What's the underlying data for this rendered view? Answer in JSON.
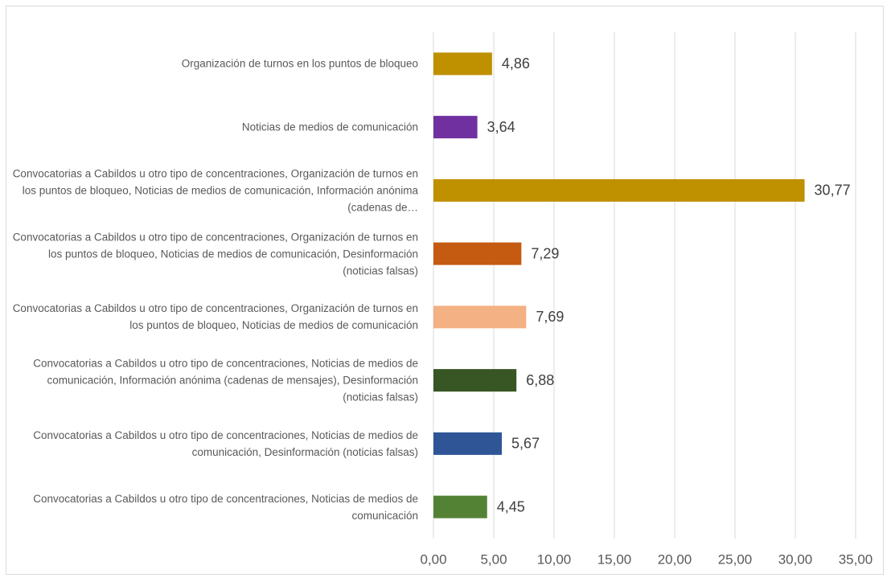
{
  "chart_data": {
    "type": "bar",
    "orientation": "horizontal",
    "categories": [
      "Organización de turnos en los puntos de bloqueo",
      "Noticias de medios de comunicación",
      "Convocatorias a Cabildos u otro tipo de concentraciones, Organización de turnos en los puntos de bloqueo, Noticias de medios de comunicación, Información anónima (cadenas de…",
      "Convocatorias a Cabildos u otro tipo de concentraciones, Organización de turnos en los puntos de bloqueo, Noticias de medios de comunicación, Desinformación (noticias falsas)",
      "Convocatorias a Cabildos u otro tipo de concentraciones, Organización de turnos en los puntos de bloqueo, Noticias de medios de comunicación",
      "Convocatorias a Cabildos u otro tipo de concentraciones, Noticias de medios de comunicación, Información anónima (cadenas de mensajes), Desinformación (noticias falsas)",
      "Convocatorias a Cabildos u otro tipo de concentraciones, Noticias de medios de comunicación, Desinformación (noticias falsas)",
      "Convocatorias a Cabildos u otro tipo de concentraciones, Noticias de medios de comunicación"
    ],
    "values": [
      4.86,
      3.64,
      30.77,
      7.29,
      7.69,
      6.88,
      5.67,
      4.45
    ],
    "value_labels": [
      "4,86",
      "3,64",
      "30,77",
      "7,29",
      "7,69",
      "6,88",
      "5,67",
      "4,45"
    ],
    "colors": [
      "#bf9000",
      "#7030a0",
      "#bf9000",
      "#c55a11",
      "#f4b183",
      "#375623",
      "#2f5597",
      "#548235"
    ],
    "xlim": [
      0,
      35
    ],
    "xticks": [
      {
        "value": 0,
        "label": "0,00"
      },
      {
        "value": 5,
        "label": "5,00"
      },
      {
        "value": 10,
        "label": "10,00"
      },
      {
        "value": 15,
        "label": "15,00"
      },
      {
        "value": 20,
        "label": "20,00"
      },
      {
        "value": 25,
        "label": "25,00"
      },
      {
        "value": 30,
        "label": "30,00"
      },
      {
        "value": 35,
        "label": "35,00"
      }
    ],
    "grid": true
  }
}
